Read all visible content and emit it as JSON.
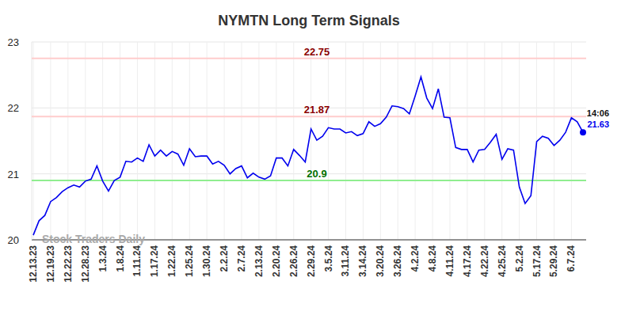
{
  "chart_data": {
    "type": "line",
    "title": "NYMTN Long Term Signals",
    "color": "#0000ee",
    "grid": true,
    "ylim": [
      20,
      23
    ],
    "yticks": [
      20,
      21,
      22,
      23
    ],
    "categories": [
      "12.13.23",
      null,
      null,
      "12.19.23",
      null,
      null,
      "12.22.23",
      null,
      null,
      "12.28.23",
      null,
      null,
      "1.3.24",
      null,
      null,
      "1.8.24",
      null,
      null,
      "1.11.24",
      null,
      null,
      "1.17.24",
      null,
      null,
      "1.22.24",
      null,
      null,
      "1.25.24",
      null,
      null,
      "1.30.24",
      null,
      null,
      "2.2.24",
      null,
      null,
      "2.7.24",
      null,
      null,
      "2.13.24",
      null,
      null,
      "2.20.24",
      null,
      null,
      "2.26.24",
      null,
      null,
      "2.29.24",
      null,
      null,
      "3.5.24",
      null,
      null,
      "3.11.24",
      null,
      null,
      "3.14.24",
      null,
      null,
      "3.20.24",
      null,
      null,
      "3.26.24",
      null,
      null,
      "4.2.24",
      null,
      null,
      "4.8.24",
      null,
      null,
      "4.11.24",
      null,
      null,
      "4.17.24",
      null,
      null,
      "4.22.24",
      null,
      null,
      "4.25.24",
      null,
      null,
      "5.2.24",
      null,
      null,
      "5.17.24",
      null,
      null,
      "5.29.24",
      null,
      null,
      "6.7.24",
      null,
      null
    ],
    "values": [
      20.07,
      20.29,
      20.37,
      20.58,
      20.64,
      20.73,
      20.79,
      20.83,
      20.8,
      20.89,
      20.92,
      21.12,
      20.89,
      20.74,
      20.9,
      20.95,
      21.19,
      21.18,
      21.24,
      21.19,
      21.44,
      21.27,
      21.36,
      21.27,
      21.34,
      21.3,
      21.13,
      21.38,
      21.26,
      21.27,
      21.27,
      21.15,
      21.19,
      21.13,
      21.0,
      21.08,
      21.12,
      20.94,
      21.01,
      20.95,
      20.92,
      20.97,
      21.24,
      21.24,
      21.12,
      21.37,
      21.28,
      21.18,
      21.68,
      21.51,
      21.57,
      21.7,
      21.68,
      21.68,
      21.62,
      21.64,
      21.58,
      21.61,
      21.79,
      21.72,
      21.76,
      21.86,
      22.03,
      22.02,
      21.99,
      21.91,
      22.18,
      22.47,
      22.15,
      21.99,
      22.29,
      21.86,
      21.85,
      21.4,
      21.37,
      21.37,
      21.18,
      21.36,
      21.37,
      21.48,
      21.6,
      21.22,
      21.38,
      21.36,
      20.8,
      20.55,
      20.67,
      21.49,
      21.57,
      21.54,
      21.43,
      21.51,
      21.63,
      21.85,
      21.79,
      21.63
    ],
    "lines": [
      {
        "value": 22.75,
        "label": "22.75",
        "color": "#8b0000"
      },
      {
        "value": 21.87,
        "label": "21.87",
        "color": "#8b0000"
      },
      {
        "value": 20.9,
        "label": "20.9",
        "color": "#007000"
      }
    ],
    "last_point": {
      "time": "14:06",
      "label": "21.63"
    },
    "watermark": "Stock Traders Daily"
  }
}
